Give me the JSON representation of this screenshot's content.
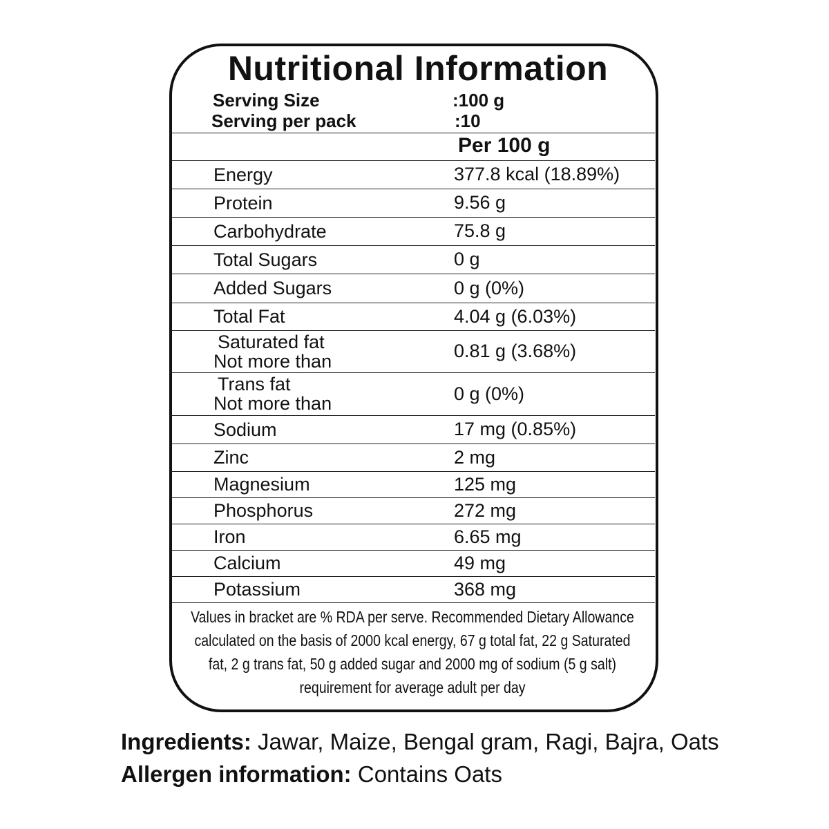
{
  "title": "Nutritional Information",
  "serving": [
    {
      "label": "Serving Size",
      "value": ":100 g"
    },
    {
      "label": "Serving per pack",
      "value": ":10"
    }
  ],
  "column_header": "Per 100 g",
  "rows": [
    {
      "name": "Energy",
      "value": "377.8 kcal (18.89%)"
    },
    {
      "name": "Protein",
      "value": "9.56 g"
    },
    {
      "name": "Carbohydrate",
      "value": "75.8 g"
    },
    {
      "name": "Total Sugars",
      "value": "0 g"
    },
    {
      "name": "Added Sugars",
      "value": "0 g (0%)"
    },
    {
      "name": "Total Fat",
      "value": "4.04 g (6.03%)"
    },
    {
      "name": "Saturated fat",
      "qualifier": "Not more than",
      "value": "0.81 g (3.68%)"
    },
    {
      "name": "Trans fat",
      "qualifier": "Not more than",
      "value": "0 g (0%)"
    },
    {
      "name": "Sodium",
      "value": "17 mg  (0.85%)"
    },
    {
      "name": "Zinc",
      "value": "2 mg"
    },
    {
      "name": "Magnesium",
      "value": "125 mg"
    },
    {
      "name": "Phosphorus",
      "value": "272 mg"
    },
    {
      "name": "Iron",
      "value": "6.65 mg"
    },
    {
      "name": "Calcium",
      "value": "49 mg"
    },
    {
      "name": "Potassium",
      "value": "368 mg"
    }
  ],
  "footnote": [
    "Values in bracket are % RDA per serve. Recommended Dietary Allowance",
    "calculated on the basis of 2000 kcal energy, 67 g total fat, 22 g Saturated",
    "fat, 2 g trans fat, 50 g added sugar and 2000 mg of sodium (5 g salt)",
    "requirement for average adult per day"
  ],
  "ingredients": {
    "label": "Ingredients:",
    "text": "Jawar, Maize, Bengal gram, Ragi, Bajra, Oats"
  },
  "allergen": {
    "label": "Allergen information:",
    "text": "Contains Oats"
  }
}
